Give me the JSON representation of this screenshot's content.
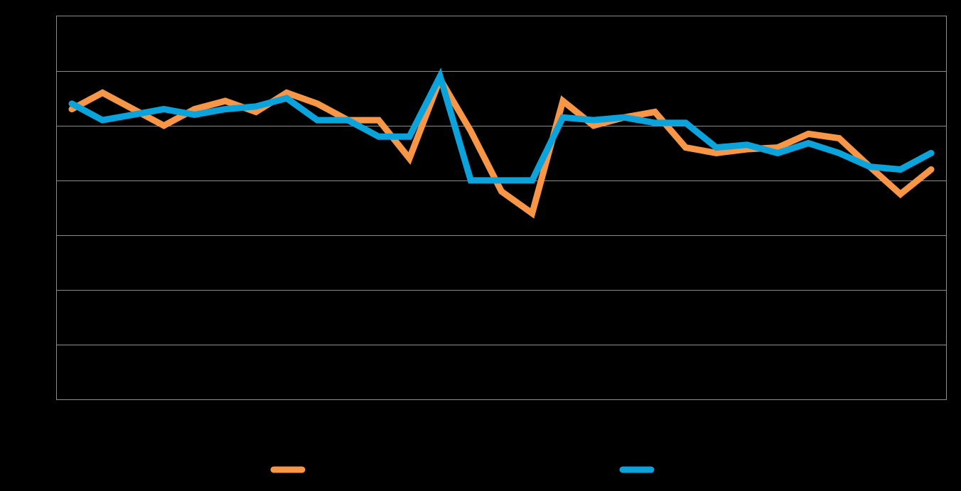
{
  "chart_data": {
    "type": "line",
    "title": "",
    "xlabel": "",
    "ylabel": "",
    "ylim": [
      0,
      7
    ],
    "grid": true,
    "legend_placement": "bottom",
    "background_color": "#000000",
    "gridline_color": "#8c8c8c",
    "x": [
      1,
      2,
      3,
      4,
      5,
      6,
      7,
      8,
      9,
      10,
      11,
      12,
      13,
      14,
      15,
      16,
      17,
      18,
      19,
      20,
      21,
      22,
      23,
      24,
      25,
      26,
      27,
      28,
      29
    ],
    "series": [
      {
        "color": "#f79646",
        "values": [
          5.3,
          5.6,
          5.3,
          5.0,
          5.3,
          5.45,
          5.25,
          5.6,
          5.4,
          5.1,
          5.1,
          4.4,
          5.85,
          4.9,
          3.8,
          3.4,
          5.45,
          5.0,
          5.15,
          5.25,
          4.6,
          4.5,
          4.57,
          4.6,
          4.85,
          4.77,
          4.25,
          3.75,
          4.2
        ]
      },
      {
        "color": "#0ba3dc",
        "values": [
          5.4,
          5.1,
          5.2,
          5.3,
          5.2,
          5.3,
          5.35,
          5.5,
          5.1,
          5.1,
          4.8,
          4.8,
          5.9,
          4.0,
          4.0,
          4.0,
          5.15,
          5.1,
          5.15,
          5.05,
          5.05,
          4.6,
          4.65,
          4.5,
          4.68,
          4.5,
          4.25,
          4.2,
          4.5
        ]
      }
    ]
  }
}
